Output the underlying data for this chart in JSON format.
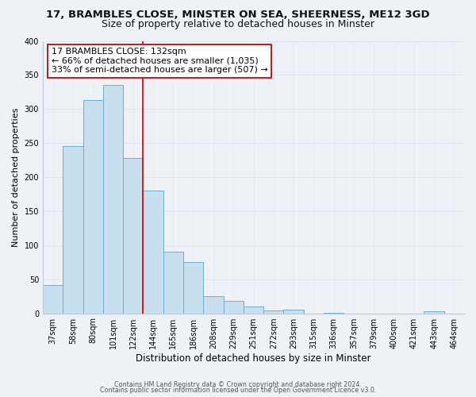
{
  "title": "17, BRAMBLES CLOSE, MINSTER ON SEA, SHEERNESS, ME12 3GD",
  "subtitle": "Size of property relative to detached houses in Minster",
  "xlabel": "Distribution of detached houses by size in Minster",
  "ylabel": "Number of detached properties",
  "bar_labels": [
    "37sqm",
    "58sqm",
    "80sqm",
    "101sqm",
    "122sqm",
    "144sqm",
    "165sqm",
    "186sqm",
    "208sqm",
    "229sqm",
    "251sqm",
    "272sqm",
    "293sqm",
    "315sqm",
    "336sqm",
    "357sqm",
    "379sqm",
    "400sqm",
    "421sqm",
    "443sqm",
    "464sqm"
  ],
  "bar_values": [
    42,
    245,
    313,
    335,
    228,
    180,
    90,
    75,
    25,
    18,
    10,
    4,
    5,
    0,
    1,
    0,
    0,
    0,
    0,
    3,
    0
  ],
  "bar_color": "#c8dff0",
  "bar_edge_color": "#6baed6",
  "vline_x": 4.5,
  "vline_color": "red",
  "annotation_title": "17 BRAMBLES CLOSE: 132sqm",
  "annotation_line1": "← 66% of detached houses are smaller (1,035)",
  "annotation_line2": "33% of semi-detached houses are larger (507) →",
  "annotation_box_color": "#ffffff",
  "annotation_box_edge": "#cc0000",
  "ylim": [
    0,
    400
  ],
  "yticks": [
    0,
    50,
    100,
    150,
    200,
    250,
    300,
    350,
    400
  ],
  "footer_line1": "Contains HM Land Registry data © Crown copyright and database right 2024.",
  "footer_line2": "Contains public sector information licensed under the Open Government Licence v3.0.",
  "bg_color": "#eef2f7",
  "grid_color": "#dce8f0",
  "title_fontsize": 9.5,
  "subtitle_fontsize": 9,
  "tick_fontsize": 7,
  "ylabel_fontsize": 8,
  "xlabel_fontsize": 8.5,
  "annotation_fontsize": 8,
  "footer_fontsize": 5.8
}
